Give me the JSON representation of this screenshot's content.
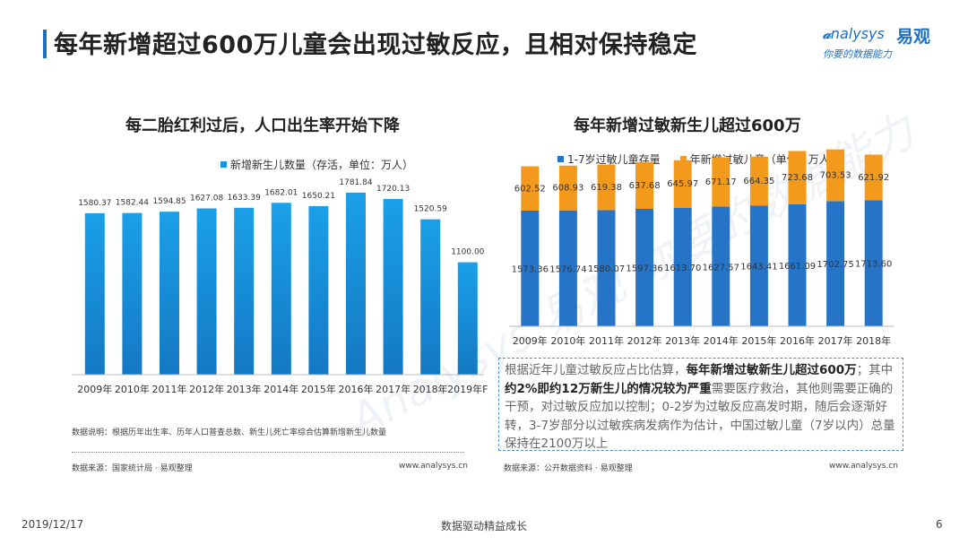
{
  "header": {
    "title": "每年新增超过600万儿童会出现过敏反应，且相对保持稳定",
    "logo_en": "nalysys",
    "logo_cn": "易观",
    "logo_slogan": "你要的数据能力",
    "watermark": "Analysys 易观 你要的数据能力"
  },
  "left_chart": {
    "subtitle": "每二胎红利过后，人口出生率开始下降",
    "note": "数据说明：根据历年出生率、历年人口普查总数、新生儿死亡率综合估算新增新生儿数量",
    "source": "数据来源：国家统计局 · 易观整理",
    "site": "www.analysys.cn"
  },
  "right_chart": {
    "subtitle": "每年新增过敏新生儿超过600万",
    "source": "数据来源：公开数据资料 · 易观整理",
    "site": "www.analysys.cn"
  },
  "textbox": {
    "p1": "根据近年儿童过敏反应占比估算，",
    "b1": "每年新增过敏新生儿超过600万",
    "p2": "；其中",
    "b2": "约2%即约12万新生儿的情况较为严重",
    "p3": "需要医疗救治，其他则需要正确的干预，对过敏反应加以控制；0-2岁为过敏反应高发时期，随后会逐渐好转，3-7岁部分以过敏疾病发病作为估计，中国过敏儿童（7岁以内）总量保持在2100万以上"
  },
  "footer": {
    "date": "2019/12/17",
    "slogan": "数据驱动精益成长",
    "page": "6"
  },
  "colors": {
    "accent": "#1f6fbf",
    "bar_left": "#1796dd",
    "series_base": "#2574c8",
    "series_new": "#f39a1c"
  },
  "chart_data": [
    {
      "type": "bar",
      "title": "每二胎红利过后，人口出生率开始下降",
      "categories": [
        "2009年",
        "2010年",
        "2011年",
        "2012年",
        "2013年",
        "2014年",
        "2015年",
        "2016年",
        "2017年",
        "2018年",
        "2019年F"
      ],
      "series": [
        {
          "name": "新增新生儿数量（存活，单位：万人）",
          "values": [
            1580.37,
            1582.44,
            1594.85,
            1627.08,
            1633.39,
            1682.01,
            1650.21,
            1781.84,
            1720.13,
            1520.59,
            1100.0
          ]
        }
      ],
      "value_labels": [
        "1580.37",
        "1582.44",
        "1594.85",
        "1627.08",
        "1633.39",
        "1682.01",
        "1650.21",
        "1781.84",
        "1720.13",
        "1520.59",
        "1100.00"
      ],
      "ylim": [
        0,
        2000
      ],
      "legend": "top-center",
      "grid": false
    },
    {
      "type": "bar",
      "stacked": true,
      "title": "每年新增过敏新生儿超过600万",
      "categories": [
        "2009年",
        "2010年",
        "2011年",
        "2012年",
        "2013年",
        "2014年",
        "2015年",
        "2016年",
        "2017年",
        "2018年"
      ],
      "series": [
        {
          "name": "1-7岁过敏儿童存量",
          "values": [
            1573.36,
            1576.74,
            1580.07,
            1597.36,
            1613.7,
            1627.57,
            1643.41,
            1661.09,
            1702.75,
            1713.6
          ]
        },
        {
          "name": "年新增过敏儿童（单位：万人）",
          "values": [
            602.52,
            608.93,
            619.38,
            637.68,
            645.97,
            671.17,
            664.35,
            723.68,
            703.53,
            621.92
          ]
        }
      ],
      "value_labels": {
        "base": [
          "1573.36",
          "1576.74",
          "1580.07",
          "1597.36",
          "1613.70",
          "1627.57",
          "1643.41",
          "1661.09",
          "1702.75",
          "1713.60"
        ],
        "new": [
          "602.52",
          "608.93",
          "619.38",
          "637.68",
          "645.97",
          "671.17",
          "664.35",
          "723.68",
          "703.53",
          "621.92"
        ]
      },
      "ylim": [
        0,
        2500
      ],
      "legend": "top-left",
      "grid": false
    }
  ]
}
